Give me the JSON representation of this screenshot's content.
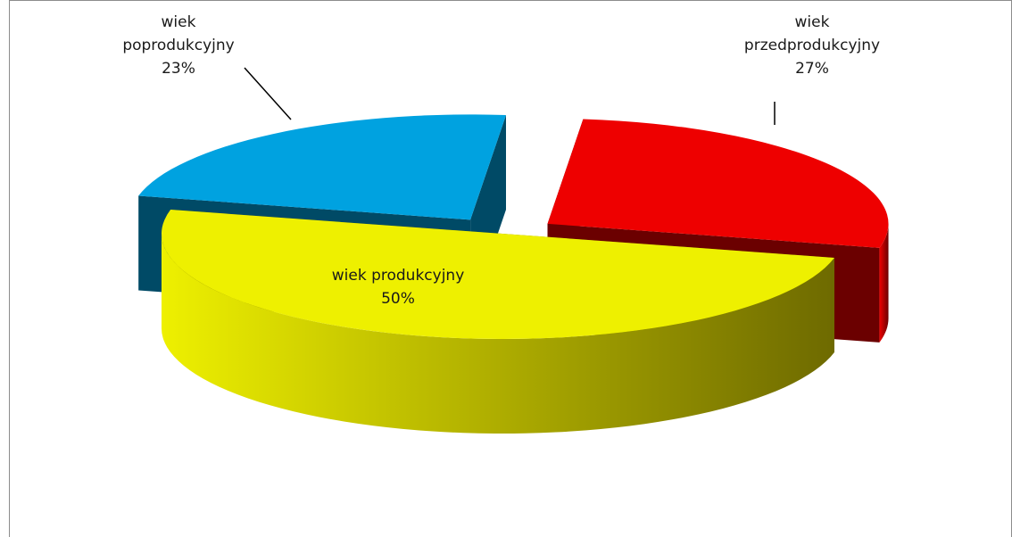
{
  "chart_data": {
    "type": "pie",
    "style": "3d-exploded",
    "labels": [
      "wiek przedprodukcyjny",
      "wiek produkcyjny",
      "wiek poprodukcyjny"
    ],
    "values": [
      27,
      50,
      23
    ],
    "data_labels": [
      "27%",
      "50%",
      "23%"
    ],
    "label_lines": [
      [
        "wiek",
        "przedprodukcyjny"
      ],
      [
        "wiek produkcyjny"
      ],
      [
        "wiek",
        "poprodukcyjny"
      ]
    ],
    "colors": [
      "#ee0000",
      "#eef000",
      "#00a2e0"
    ],
    "side_colors": [
      "#6b0000",
      "#6e6a00",
      "#004a66"
    ],
    "legend": "none",
    "title": ""
  }
}
